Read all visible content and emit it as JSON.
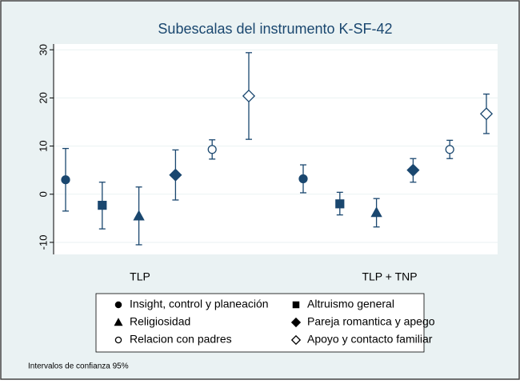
{
  "chart_data": {
    "type": "errorbar",
    "title": "Subescalas del instrumento K-SF-42",
    "categories": [
      "TLP",
      "TLP + TNP"
    ],
    "ylim": [
      -12.5,
      31.2
    ],
    "yticks": [
      -10,
      0,
      10,
      20,
      30
    ],
    "grid": true,
    "note": "Intervalos de confianza 95%",
    "color": "#1a476f",
    "series": [
      {
        "name": "Insight, control y planeación",
        "marker": "circle",
        "values": [
          3,
          3.2
        ],
        "lower": [
          -3.5,
          0.3
        ],
        "upper": [
          9.5,
          6.1
        ]
      },
      {
        "name": "Altruismo general",
        "marker": "square",
        "values": [
          -2.3,
          -2
        ],
        "lower": [
          -7.2,
          -4.3
        ],
        "upper": [
          2.5,
          0.4
        ]
      },
      {
        "name": "Religiosidad",
        "marker": "triangle",
        "values": [
          -4.5,
          -3.8
        ],
        "lower": [
          -10.5,
          -6.8
        ],
        "upper": [
          1.5,
          -0.9
        ]
      },
      {
        "name": "Pareja romantica y apego",
        "marker": "diamond",
        "values": [
          4,
          5
        ],
        "lower": [
          -1.2,
          2.5
        ],
        "upper": [
          9.2,
          7.4
        ]
      },
      {
        "name": "Relacion con padres",
        "marker": "circle-open",
        "values": [
          9.3,
          9.3
        ],
        "lower": [
          7.3,
          7.4
        ],
        "upper": [
          11.3,
          11.2
        ]
      },
      {
        "name": "Apoyo y contacto familiar",
        "marker": "diamond-open",
        "values": [
          20.4,
          16.7
        ],
        "lower": [
          11.4,
          12.6
        ],
        "upper": [
          29.4,
          20.8
        ]
      }
    ]
  }
}
